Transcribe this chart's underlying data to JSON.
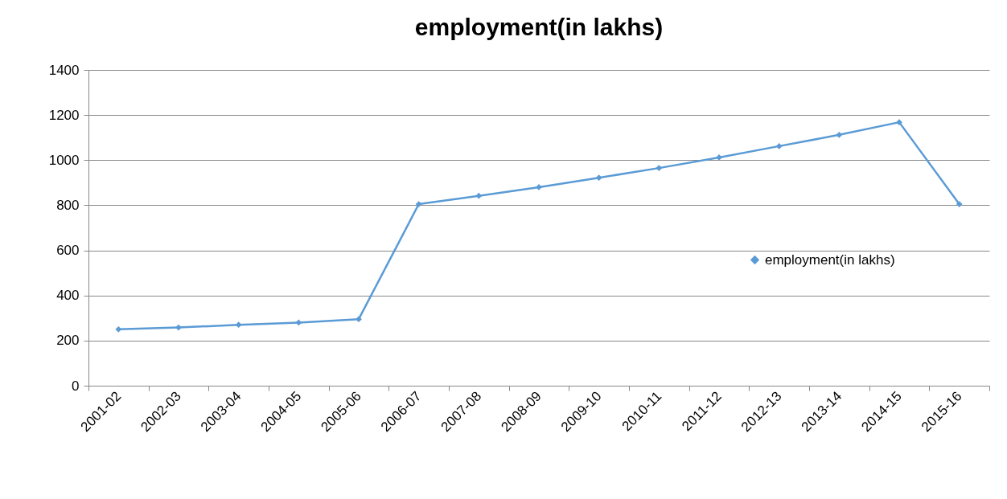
{
  "chart_data": {
    "type": "line",
    "title": "employment(in lakhs)",
    "categories": [
      "2001-02",
      "2002-03",
      "2003-04",
      "2004-05",
      "2005-06",
      "2006-07",
      "2007-08",
      "2008-09",
      "2009-10",
      "2010-11",
      "2011-12",
      "2012-13",
      "2013-14",
      "2014-15",
      "2015-16"
    ],
    "series": [
      {
        "name": "employment(in lakhs)",
        "color": "#5b9bd5",
        "values": [
          250,
          258,
          270,
          280,
          295,
          805,
          842,
          880,
          922,
          965,
          1012,
          1062,
          1112,
          1168,
          805
        ]
      }
    ],
    "ylim": [
      0,
      1400
    ],
    "yticks": [
      0,
      200,
      400,
      600,
      800,
      1000,
      1200,
      1400
    ],
    "grid": "y",
    "legend": "right",
    "marker": "diamond",
    "line_style": "solid"
  }
}
